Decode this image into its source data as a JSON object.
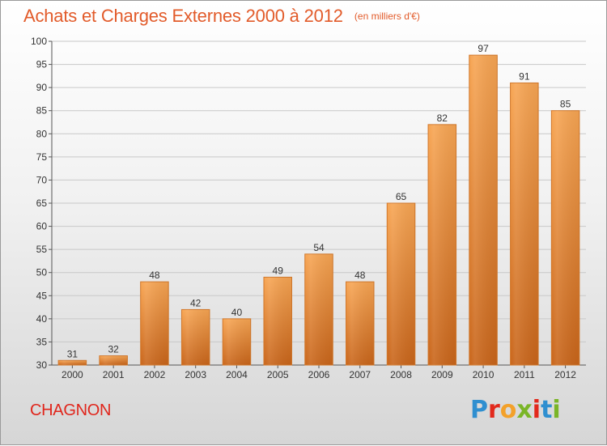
{
  "header": {
    "title": "Achats et Charges Externes 2000 à 2012",
    "unit": "(en milliers d'€)"
  },
  "footer": {
    "commune": "CHAGNON",
    "logo_letters": [
      "P",
      "r",
      "o",
      "x",
      "i",
      "t",
      "i"
    ],
    "logo_colors": [
      "#2f8fd0",
      "#e2291c",
      "#f3a12a",
      "#7ab527",
      "#e2291c",
      "#2f8fd0",
      "#7ab527"
    ]
  },
  "colors": {
    "bar_top": "#f7a553",
    "bar_bottom": "#c9651a",
    "title": "#e25b2a",
    "commune": "#e0261c"
  },
  "chart_data": {
    "type": "bar",
    "title": "Achats et Charges Externes 2000 à 2012",
    "subtitle": "(en milliers d'€)",
    "xlabel": "",
    "ylabel": "",
    "categories": [
      "2000",
      "2001",
      "2002",
      "2003",
      "2004",
      "2005",
      "2006",
      "2007",
      "2008",
      "2009",
      "2010",
      "2011",
      "2012"
    ],
    "values": [
      31,
      32,
      48,
      42,
      40,
      49,
      54,
      48,
      65,
      82,
      97,
      91,
      85
    ],
    "ylim": [
      30,
      100
    ],
    "yticks": [
      30,
      35,
      40,
      45,
      50,
      55,
      60,
      65,
      70,
      75,
      80,
      85,
      90,
      95,
      100
    ],
    "grid": true,
    "data_labels": true
  }
}
